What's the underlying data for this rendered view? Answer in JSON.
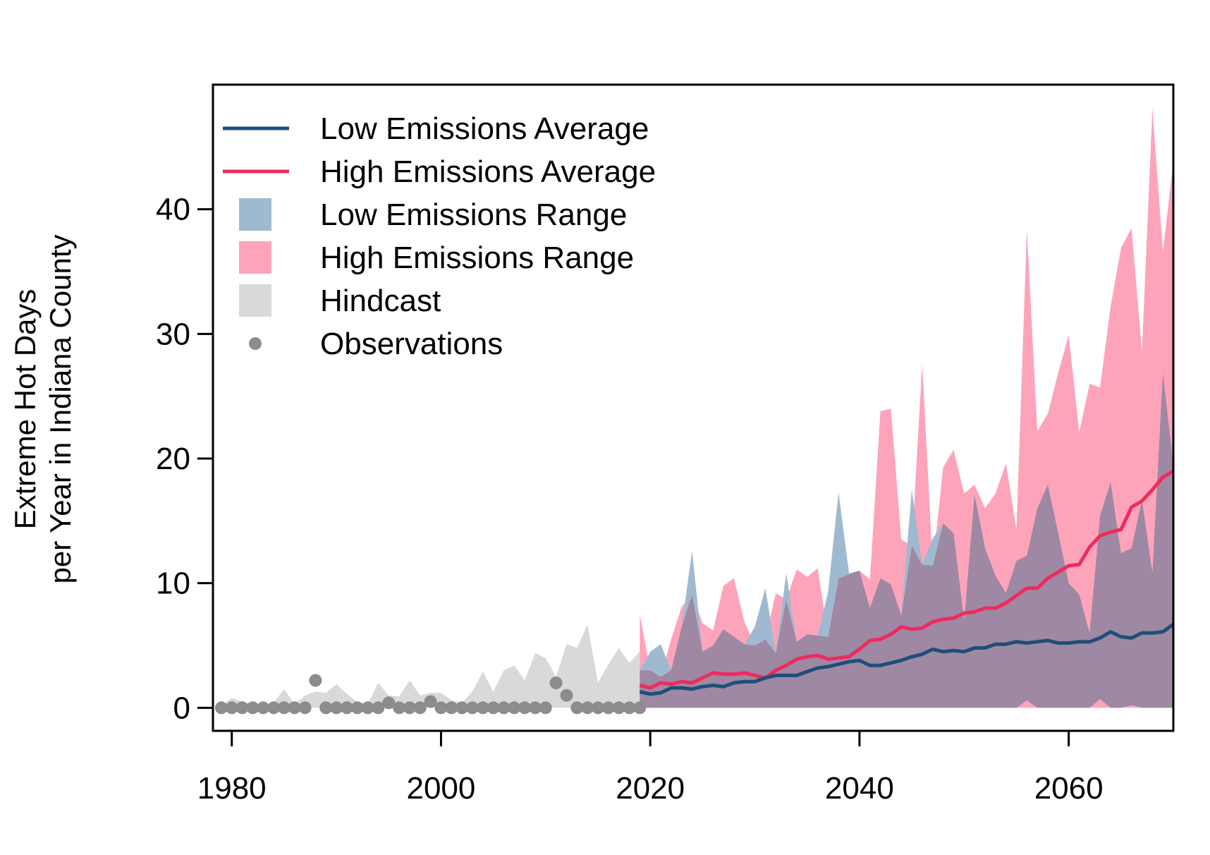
{
  "chart_data": {
    "type": "area",
    "title": "",
    "ylabel_lines": [
      "Extreme Hot Days",
      "per Year in Indiana County"
    ],
    "xlabel": "",
    "xlim": [
      1978.2,
      2070
    ],
    "ylim": [
      -1.85,
      50
    ],
    "xticks": [
      1980,
      2000,
      2020,
      2040,
      2060
    ],
    "yticks": [
      0,
      10,
      20,
      30,
      40
    ],
    "grid": false,
    "legend_position": "top-left",
    "colors": {
      "low_avg": "#1f4e79",
      "high_avg": "#ef2b5d",
      "low_range": "#9fbad0",
      "high_range": "#fda4bb",
      "overlap": "#9e88a3",
      "hindcast": "#d9d9d9",
      "observations": "#8c8c8c"
    },
    "legend": [
      {
        "label": "Low Emissions Average",
        "kind": "line",
        "color": "#1f4e79"
      },
      {
        "label": "High Emissions Average",
        "kind": "line",
        "color": "#ef2b5d"
      },
      {
        "label": "Low Emissions Range",
        "kind": "box",
        "color": "#9fbad0"
      },
      {
        "label": "High Emissions Range",
        "kind": "box",
        "color": "#fda4bb"
      },
      {
        "label": "Hindcast",
        "kind": "box",
        "color": "#d9d9d9"
      },
      {
        "label": "Observations",
        "kind": "dot",
        "color": "#8c8c8c"
      }
    ],
    "observations": {
      "x": [
        1979,
        1980,
        1981,
        1982,
        1983,
        1984,
        1985,
        1986,
        1987,
        1988,
        1989,
        1990,
        1991,
        1992,
        1993,
        1994,
        1995,
        1996,
        1997,
        1998,
        1999,
        2000,
        2001,
        2002,
        2003,
        2004,
        2005,
        2006,
        2007,
        2008,
        2009,
        2010,
        2011,
        2012,
        2013,
        2014,
        2015,
        2016,
        2017,
        2018,
        2019
      ],
      "y": [
        0,
        0,
        0,
        0,
        0,
        0,
        0,
        0,
        0,
        2.2,
        0,
        0,
        0,
        0,
        0,
        0,
        0.4,
        0,
        0,
        0,
        0.5,
        0,
        0,
        0,
        0,
        0,
        0,
        0,
        0,
        0,
        0,
        0,
        2.0,
        1.0,
        0,
        0,
        0,
        0,
        0,
        0,
        0
      ]
    },
    "hindcast": {
      "x": [
        1979,
        1980,
        1981,
        1982,
        1983,
        1984,
        1985,
        1986,
        1987,
        1988,
        1989,
        1990,
        1991,
        1992,
        1993,
        1994,
        1995,
        1996,
        1997,
        1998,
        1999,
        2000,
        2001,
        2002,
        2003,
        2004,
        2005,
        2006,
        2007,
        2008,
        2009,
        2010,
        2011,
        2012,
        2013,
        2014,
        2015,
        2016,
        2017,
        2018,
        2019
      ],
      "upper": [
        0.2,
        0.8,
        0.5,
        0.3,
        0.2,
        0.4,
        1.5,
        0.3,
        1.0,
        1.3,
        1.2,
        1.9,
        1.1,
        0.5,
        0.3,
        2.0,
        1.0,
        0.9,
        2.2,
        1.0,
        1.2,
        1.2,
        0.6,
        0.4,
        1.3,
        2.9,
        1.3,
        3.0,
        3.4,
        2.2,
        4.4,
        4.0,
        2.5,
        5.1,
        4.8,
        6.7,
        2.0,
        3.5,
        4.8,
        3.6,
        4.5
      ],
      "lower": [
        0,
        0,
        0,
        0,
        0,
        0,
        0,
        0,
        0,
        0,
        0,
        0,
        0,
        0,
        0,
        0,
        0,
        0,
        0,
        0,
        0,
        0,
        0,
        0,
        0,
        0,
        0,
        0,
        0,
        0,
        0,
        0,
        0,
        0,
        0,
        0,
        0,
        0,
        0,
        0,
        0
      ]
    },
    "projection_years": [
      2019,
      2020,
      2021,
      2022,
      2023,
      2024,
      2025,
      2026,
      2027,
      2028,
      2029,
      2030,
      2031,
      2032,
      2033,
      2034,
      2035,
      2036,
      2037,
      2038,
      2039,
      2040,
      2041,
      2042,
      2043,
      2044,
      2045,
      2046,
      2047,
      2048,
      2049,
      2050,
      2051,
      2052,
      2053,
      2054,
      2055,
      2056,
      2057,
      2058,
      2059,
      2060,
      2061,
      2062,
      2063,
      2064,
      2065,
      2066,
      2067,
      2068,
      2069,
      2070
    ],
    "series": [
      {
        "name": "Low Emissions Average",
        "values": [
          1.3,
          1.1,
          1.2,
          1.6,
          1.6,
          1.5,
          1.7,
          1.8,
          1.7,
          2.0,
          2.1,
          2.1,
          2.4,
          2.6,
          2.6,
          2.6,
          2.9,
          3.2,
          3.3,
          3.5,
          3.7,
          3.8,
          3.4,
          3.4,
          3.6,
          3.8,
          4.1,
          4.3,
          4.7,
          4.5,
          4.6,
          4.5,
          4.8,
          4.8,
          5.1,
          5.1,
          5.3,
          5.2,
          5.3,
          5.4,
          5.2,
          5.2,
          5.3,
          5.3,
          5.6,
          6.1,
          5.7,
          5.6,
          6.0,
          6.0,
          6.1,
          6.7
        ]
      },
      {
        "name": "High Emissions Average",
        "values": [
          1.8,
          1.6,
          2.0,
          1.9,
          2.1,
          2.0,
          2.4,
          2.8,
          2.7,
          2.7,
          2.8,
          2.6,
          2.4,
          3.0,
          3.4,
          3.9,
          4.1,
          4.2,
          3.9,
          4.0,
          4.1,
          4.7,
          5.4,
          5.5,
          5.9,
          6.5,
          6.3,
          6.4,
          6.9,
          7.1,
          7.2,
          7.6,
          7.7,
          8.0,
          8.0,
          8.4,
          9.0,
          9.6,
          9.6,
          10.4,
          10.9,
          11.4,
          11.5,
          12.9,
          13.8,
          14.1,
          14.3,
          16.1,
          16.6,
          17.5,
          18.5,
          19.0
        ]
      },
      {
        "name": "Low Emissions Range",
        "upper": [
          3.0,
          4.5,
          5.1,
          3.0,
          6.5,
          12.6,
          4.5,
          5.0,
          6.3,
          5.7,
          5.1,
          6.5,
          9.6,
          4.4,
          10.8,
          5.3,
          5.9,
          5.8,
          9.3,
          17.3,
          10.8,
          11.0,
          8.0,
          10.4,
          9.9,
          7.4,
          17.5,
          11.5,
          13.6,
          14.8,
          14.0,
          7.0,
          17.1,
          12.8,
          10.6,
          9.2,
          11.8,
          12.2,
          16.0,
          17.9,
          14.0,
          10.0,
          9.1,
          6.0,
          15.4,
          18.1,
          12.4,
          12.8,
          16.7,
          10.8,
          26.9,
          19.4
        ],
        "lower": [
          0,
          0,
          0,
          0,
          0,
          0,
          0,
          0,
          0,
          0,
          0,
          0,
          0,
          0,
          0,
          0,
          0,
          0,
          0,
          0,
          0,
          0,
          0,
          0,
          0,
          0,
          0,
          0,
          0,
          0,
          0,
          0,
          0,
          0,
          0,
          0,
          0,
          0.6,
          0,
          0,
          0,
          0,
          0,
          0,
          0.7,
          0,
          0,
          0.2,
          0,
          0,
          0,
          0
        ]
      },
      {
        "name": "High Emissions Range",
        "upper": [
          7.5,
          3.0,
          2.5,
          5.5,
          8.1,
          9.1,
          6.8,
          6.2,
          9.8,
          10.4,
          6.9,
          5.0,
          5.5,
          9.2,
          8.7,
          11.1,
          10.5,
          11.2,
          5.7,
          10.4,
          10.7,
          11.0,
          10.3,
          23.8,
          24.0,
          13.5,
          13.0,
          27.6,
          11.4,
          19.3,
          20.7,
          17.2,
          17.9,
          16.0,
          17.2,
          19.6,
          14.3,
          38.4,
          22.2,
          23.6,
          26.9,
          29.9,
          22.1,
          26.0,
          25.7,
          32.2,
          36.9,
          38.5,
          28.6,
          48.1,
          36.6,
          43.8
        ],
        "lower": [
          0,
          0,
          0,
          0,
          0,
          0,
          0,
          0,
          0,
          0,
          0,
          0,
          0,
          0,
          0,
          0,
          0,
          0,
          0,
          0,
          0,
          0,
          0,
          0,
          0,
          0,
          0,
          0,
          0,
          0,
          0,
          0,
          0,
          0,
          0,
          0,
          0,
          0,
          0,
          0,
          0,
          0,
          0,
          0,
          0,
          0,
          0,
          0,
          0,
          0,
          0,
          0
        ]
      }
    ]
  }
}
